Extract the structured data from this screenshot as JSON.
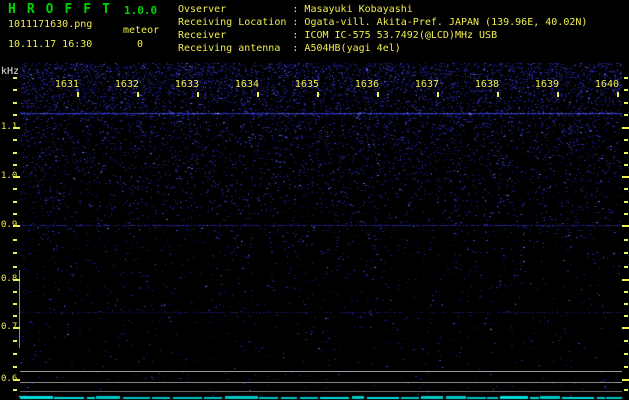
{
  "app": {
    "title": "HROFFT",
    "version": "1.0.0"
  },
  "session": {
    "filename": "1011171630.png",
    "mode": "meteor",
    "datetime": "10.11.17 16:30",
    "echo_count": "0"
  },
  "observer_info": [
    {
      "label": "Ovserver",
      "value": "Masayuki Kobayashi"
    },
    {
      "label": "Receiving Location",
      "value": "Ogata-vill. Akita-Pref. JAPAN (139.96E, 40.02N)"
    },
    {
      "label": "Receiver",
      "value": "ICOM IC-575 53.7492(@LCD)MHz USB"
    },
    {
      "label": "Receiving antenna",
      "value": "A504HB(yagi 4el)"
    }
  ],
  "axes": {
    "freq_unit": "kHz",
    "freq_labels": [
      "1.1",
      "1.0",
      "0.9",
      "0.8",
      "0.7",
      "0.6"
    ],
    "time_labels": [
      "1631",
      "1632",
      "1633",
      "1634",
      "1635",
      "1636",
      "1637",
      "1638",
      "1639",
      "1640"
    ]
  },
  "colors": {
    "background": "#000000",
    "title_green": "#00d400",
    "text_yellow": "#f0ee4e",
    "text_white": "#e8e8e8",
    "noise_blue": "#2828a4",
    "carrier_blue": "#4c5ce0",
    "level_line_gray": "#8a8a8a",
    "noise_floor_cyan": "#00c8c8"
  }
}
